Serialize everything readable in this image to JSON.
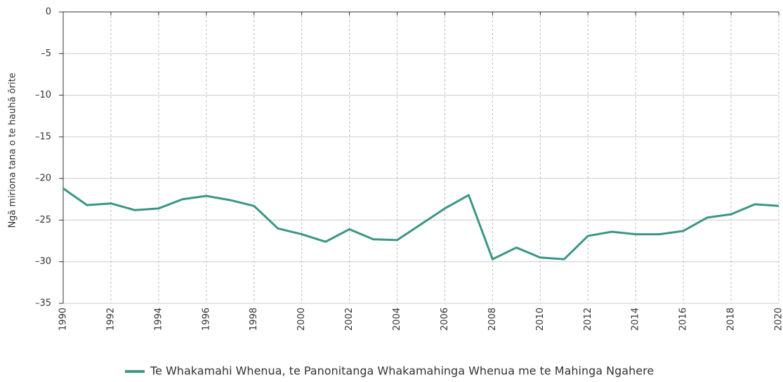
{
  "chart_data": {
    "type": "line",
    "ylabel": "Ngā miriona tana o te hauhā ōrite",
    "x": [
      1990,
      1991,
      1992,
      1993,
      1994,
      1995,
      1996,
      1997,
      1998,
      1999,
      2000,
      2001,
      2002,
      2003,
      2004,
      2005,
      2006,
      2007,
      2008,
      2009,
      2010,
      2011,
      2012,
      2013,
      2014,
      2015,
      2016,
      2017,
      2018,
      2019,
      2020
    ],
    "series": [
      {
        "name": "Te Whakamahi Whenua, te Panonitanga Whakamahinga Whenua me te Mahinga Ngahere",
        "color": "#3a9685",
        "values": [
          -21.2,
          -23.2,
          -23.0,
          -23.8,
          -23.6,
          -22.5,
          -22.1,
          -22.6,
          -23.3,
          -26.0,
          -26.7,
          -27.6,
          -26.1,
          -27.3,
          -27.4,
          -25.5,
          -23.6,
          -22.0,
          -29.7,
          -28.3,
          -29.5,
          -29.7,
          -26.9,
          -26.4,
          -26.7,
          -26.7,
          -26.3,
          -24.7,
          -24.3,
          -23.1,
          -23.3
        ]
      }
    ],
    "xlim": [
      1990,
      2020
    ],
    "xticks": [
      1990,
      1992,
      1994,
      1996,
      1998,
      2000,
      2002,
      2004,
      2006,
      2008,
      2010,
      2012,
      2014,
      2016,
      2018,
      2020
    ],
    "ylim": [
      -35,
      0
    ],
    "yticks": [
      0,
      {
        "value": -5,
        "label": "–5"
      },
      {
        "value": -10,
        "label": "–10"
      },
      {
        "value": -15,
        "label": "–15"
      },
      {
        "value": -20,
        "label": "–20"
      },
      {
        "value": -25,
        "label": "–25"
      },
      {
        "value": -30,
        "label": "–30"
      },
      {
        "value": -35,
        "label": "–35"
      }
    ],
    "grid": true,
    "legend": "bottom"
  }
}
